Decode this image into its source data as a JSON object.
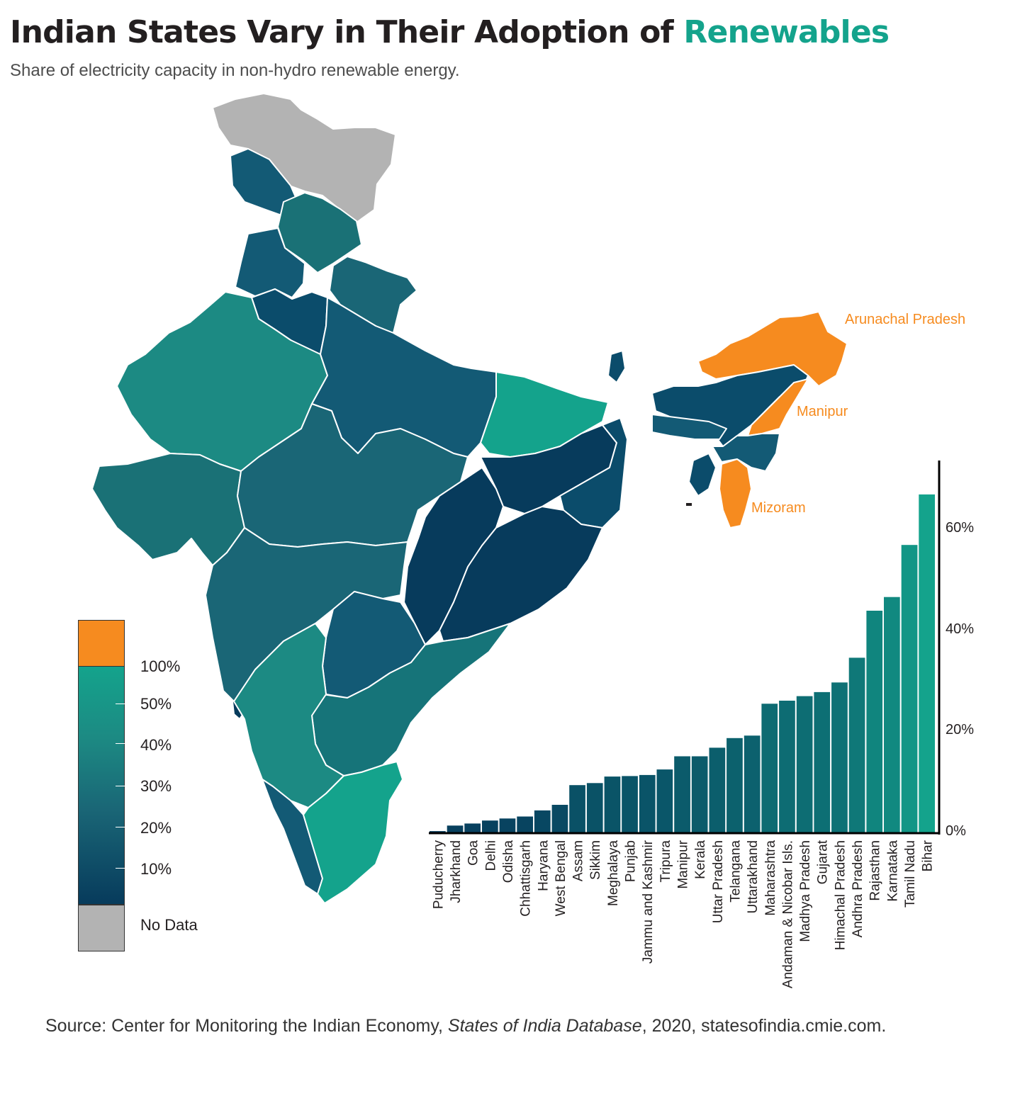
{
  "title": {
    "prefix": "Indian States Vary in Their Adoption of ",
    "highlight": "Renewables"
  },
  "subtitle": "Share of electricity capacity in non-hydro renewable energy.",
  "colors": {
    "highlight": "#14a38c",
    "outlier": "#f68b1f",
    "no_data": "#b3b3b3",
    "scale_low": "#073b5c",
    "scale_high": "#14a38c"
  },
  "callouts": [
    "Arunachal Pradesh",
    "Manipur",
    "Mizoram"
  ],
  "legend": {
    "labels": [
      "100%",
      "50%",
      "40%",
      "30%",
      "20%",
      "10%"
    ],
    "no_data_label": "No Data"
  },
  "source": {
    "before": "Source: Center for Monitoring the Indian Economy, ",
    "italic": "States of India Database",
    "after": ", 2020, statesofindia.cmie.com."
  },
  "chart_data": {
    "type": "bar",
    "categories": [
      "Puducherry",
      "Jharkhand",
      "Goa",
      "Delhi",
      "Odisha",
      "Chhattisgarh",
      "Haryana",
      "West Bengal",
      "Assam",
      "Sikkim",
      "Meghalaya",
      "Punjab",
      "Jammu and Kashmir",
      "Tripura",
      "Manipur",
      "Kerala",
      "Uttar Pradesh",
      "Telangana",
      "Uttarakhand",
      "Maharashtra",
      "Andaman & Nicobar Isls.",
      "Madhya Pradesh",
      "Gujarat",
      "Himachal Pradesh",
      "Andhra Pradesh",
      "Rajasthan",
      "Karnataka",
      "Tamil Nadu",
      "Bihar"
    ],
    "values": [
      0.4,
      1.5,
      1.9,
      2.5,
      2.9,
      3.3,
      4.5,
      5.6,
      9.5,
      9.9,
      11.2,
      11.3,
      11.5,
      12.6,
      15.2,
      15.2,
      16.9,
      18.8,
      19.3,
      25.6,
      26.2,
      27.1,
      27.9,
      29.8,
      34.7,
      44.0,
      46.7,
      57.0,
      67.0
    ],
    "yticks": [
      "0%",
      "20%",
      "40%",
      "60%"
    ],
    "ylim": [
      0,
      72
    ],
    "axis_side": "right"
  }
}
